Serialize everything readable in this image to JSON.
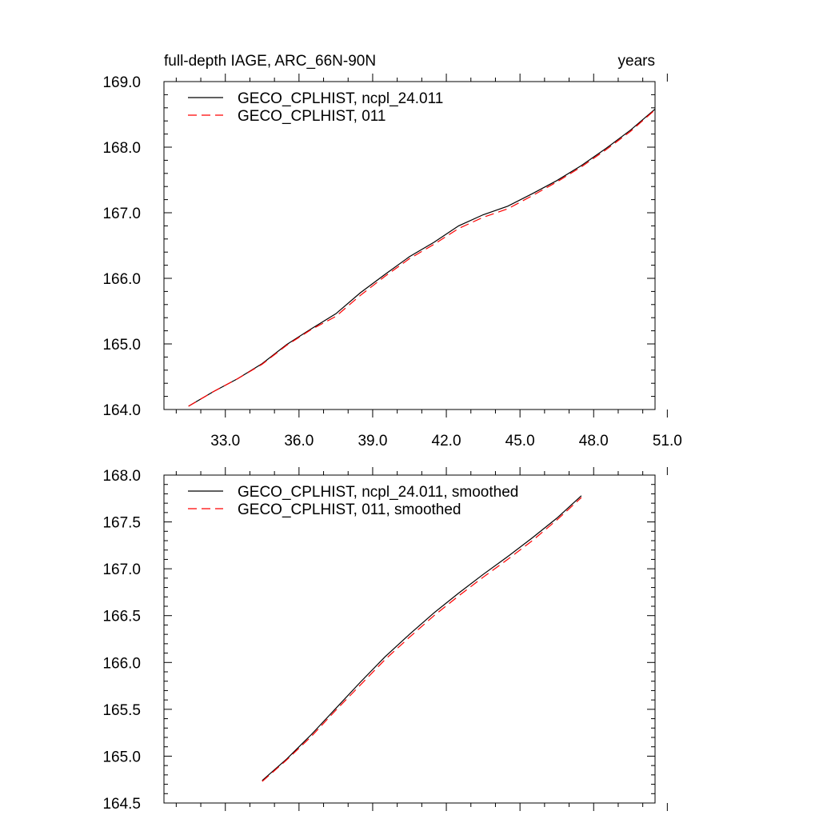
{
  "chart_data": [
    {
      "type": "line",
      "title": "full-depth IAGE, ARC_66N-90N",
      "units": "years",
      "xlabel": "",
      "ylabel": "",
      "xlim": [
        30.5,
        50.5
      ],
      "ylim": [
        164.0,
        169.0
      ],
      "x_ticks": [
        33,
        36,
        39,
        42,
        45,
        48,
        51
      ],
      "x_tick_labels": [
        "33.0",
        "36.0",
        "39.0",
        "42.0",
        "45.0",
        "48.0",
        "51.0"
      ],
      "y_ticks": [
        164,
        165,
        166,
        167,
        168,
        169
      ],
      "y_tick_labels": [
        "164.0",
        "165.0",
        "166.0",
        "167.0",
        "168.0",
        "169.0"
      ],
      "legend_position": "top-left",
      "x": [
        31.5,
        32.5,
        33.5,
        34.5,
        35.5,
        36.5,
        37.5,
        38.5,
        39.5,
        40.5,
        41.5,
        42.5,
        43.5,
        44.5,
        45.5,
        46.5,
        47.5,
        48.5,
        49.5,
        50.5
      ],
      "series": [
        {
          "name": "GECO_CPLHIST, ncpl_24.011",
          "color": "#000000",
          "dash": "solid",
          "values": [
            164.05,
            164.27,
            164.47,
            164.7,
            164.99,
            165.23,
            165.46,
            165.78,
            166.06,
            166.33,
            166.55,
            166.8,
            166.97,
            167.1,
            167.29,
            167.49,
            167.72,
            167.98,
            168.26,
            168.58
          ]
        },
        {
          "name": "GECO_CPLHIST, 011",
          "color": "#ff0000",
          "dash": "dashed",
          "values": [
            164.05,
            164.27,
            164.47,
            164.69,
            164.98,
            165.22,
            165.42,
            165.74,
            166.03,
            166.3,
            166.52,
            166.76,
            166.93,
            167.06,
            167.26,
            167.47,
            167.7,
            167.96,
            168.24,
            168.57
          ]
        }
      ]
    },
    {
      "type": "line",
      "title": "",
      "xlabel": "",
      "ylabel": "",
      "xlim": [
        30.5,
        50.5
      ],
      "ylim": [
        164.5,
        168.0
      ],
      "x_ticks": [
        33,
        36,
        39,
        42,
        45,
        48,
        51
      ],
      "x_tick_labels": [],
      "y_ticks": [
        164.5,
        165.0,
        165.5,
        166.0,
        166.5,
        167.0,
        167.5,
        168.0
      ],
      "y_tick_labels": [
        "164.5",
        "165.0",
        "165.5",
        "166.0",
        "166.5",
        "167.0",
        "167.5",
        "168.0"
      ],
      "legend_position": "top-left",
      "x": [
        34.5,
        35.5,
        36.5,
        37.5,
        38.5,
        39.5,
        40.5,
        41.5,
        42.5,
        43.5,
        44.5,
        45.5,
        46.5,
        47.5
      ],
      "series": [
        {
          "name": "GECO_CPLHIST, ncpl_24.011, smoothed",
          "color": "#000000",
          "dash": "solid",
          "values": [
            164.74,
            164.97,
            165.23,
            165.51,
            165.79,
            166.06,
            166.3,
            166.53,
            166.74,
            166.94,
            167.13,
            167.33,
            167.54,
            167.78
          ]
        },
        {
          "name": "GECO_CPLHIST, 011, smoothed",
          "color": "#ff0000",
          "dash": "dashed",
          "values": [
            164.73,
            164.96,
            165.21,
            165.49,
            165.76,
            166.03,
            166.27,
            166.5,
            166.71,
            166.91,
            167.1,
            167.3,
            167.52,
            167.76
          ]
        }
      ]
    }
  ]
}
